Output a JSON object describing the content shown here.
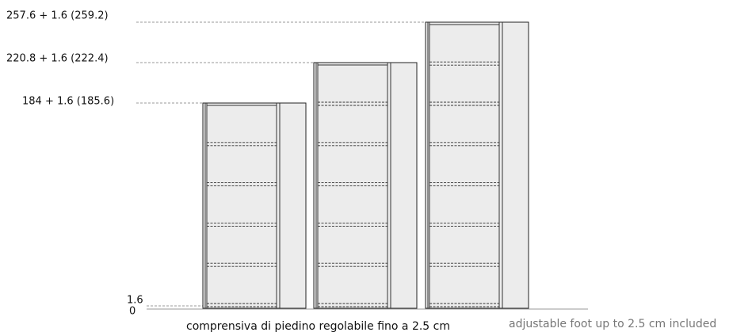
{
  "levels": [
    {
      "label": "257.6 + 1.6 (259.2)"
    },
    {
      "label": "220.8 + 1.6 (222.4)"
    },
    {
      "label": "184 + 1.6 (185.6)"
    }
  ],
  "axis": {
    "foot_label": "1.6",
    "zero_label": "0"
  },
  "notes": {
    "italian": "comprensiva di piedino regolabile fino a 2.5 cm",
    "english": "adjustable foot up to 2.5 cm included"
  }
}
